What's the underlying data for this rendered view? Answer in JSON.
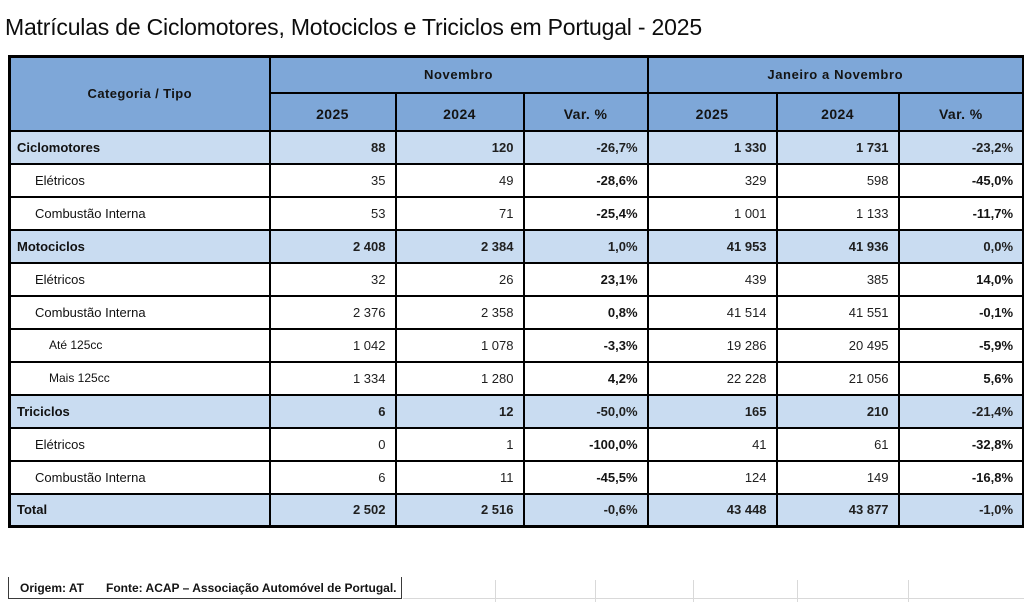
{
  "title": "Matrículas de Ciclomotores, Motociclos e Triciclos em Portugal - 2025",
  "table": {
    "corner_header": "Categoria / Tipo",
    "groups": [
      {
        "label": "Novembro"
      },
      {
        "label": "Janeiro a Novembro"
      }
    ],
    "sub_headers": [
      "2025",
      "2024",
      "Var. %",
      "2025",
      "2024",
      "Var. %"
    ],
    "rows": [
      {
        "label": "Ciclomotores",
        "level": 0,
        "category": true,
        "values": [
          "88",
          "120",
          "-26,7%",
          "1 330",
          "1 731",
          "-23,2%"
        ]
      },
      {
        "label": "Elétricos",
        "level": 1,
        "category": false,
        "values": [
          "35",
          "49",
          "-28,6%",
          "329",
          "598",
          "-45,0%"
        ]
      },
      {
        "label": "Combustão Interna",
        "level": 1,
        "category": false,
        "values": [
          "53",
          "71",
          "-25,4%",
          "1 001",
          "1 133",
          "-11,7%"
        ]
      },
      {
        "label": "Motociclos",
        "level": 0,
        "category": true,
        "values": [
          "2 408",
          "2 384",
          "1,0%",
          "41 953",
          "41 936",
          "0,0%"
        ]
      },
      {
        "label": "Elétricos",
        "level": 1,
        "category": false,
        "values": [
          "32",
          "26",
          "23,1%",
          "439",
          "385",
          "14,0%"
        ]
      },
      {
        "label": "Combustão Interna",
        "level": 1,
        "category": false,
        "values": [
          "2 376",
          "2 358",
          "0,8%",
          "41 514",
          "41 551",
          "-0,1%"
        ]
      },
      {
        "label": "Até 125cc",
        "level": 2,
        "category": false,
        "values": [
          "1 042",
          "1 078",
          "-3,3%",
          "19 286",
          "20 495",
          "-5,9%"
        ]
      },
      {
        "label": "Mais 125cc",
        "level": 2,
        "category": false,
        "values": [
          "1 334",
          "1 280",
          "4,2%",
          "22 228",
          "21 056",
          "5,6%"
        ]
      },
      {
        "label": "Triciclos",
        "level": 0,
        "category": true,
        "values": [
          "6",
          "12",
          "-50,0%",
          "165",
          "210",
          "-21,4%"
        ]
      },
      {
        "label": "Elétricos",
        "level": 1,
        "category": false,
        "values": [
          "0",
          "1",
          "-100,0%",
          "41",
          "61",
          "-32,8%"
        ]
      },
      {
        "label": "Combustão Interna",
        "level": 1,
        "category": false,
        "values": [
          "6",
          "11",
          "-45,5%",
          "124",
          "149",
          "-16,8%"
        ]
      },
      {
        "label": "Total",
        "level": 0,
        "category": true,
        "values": [
          "2 502",
          "2 516",
          "-0,6%",
          "43 448",
          "43 877",
          "-1,0%"
        ]
      }
    ]
  },
  "footer": {
    "origin": "Origem: AT",
    "source": "Fonte: ACAP – Associação Automóvel de Portugal."
  },
  "colors": {
    "header_blue": "#7EA7D8",
    "category_row_blue": "#C9DCF1",
    "border_black": "#000000",
    "faint_gridline": "#D9D9D9"
  },
  "chart_data": {
    "type": "table",
    "title": "Matrículas de Ciclomotores, Motociclos e Triciclos em Portugal - 2025",
    "column_groups": [
      "Novembro",
      "Janeiro a Novembro"
    ],
    "columns": [
      "Categoria / Tipo",
      "Novembro 2025",
      "Novembro 2024",
      "Novembro Var. %",
      "Janeiro a Novembro 2025",
      "Janeiro a Novembro 2024",
      "Janeiro a Novembro Var. %"
    ],
    "rows": [
      {
        "categoria": "Ciclomotores",
        "nov_2025": 88,
        "nov_2024": 120,
        "nov_var_pct": -26.7,
        "ytd_2025": 1330,
        "ytd_2024": 1731,
        "ytd_var_pct": -23.2
      },
      {
        "categoria": "Ciclomotores / Elétricos",
        "nov_2025": 35,
        "nov_2024": 49,
        "nov_var_pct": -28.6,
        "ytd_2025": 329,
        "ytd_2024": 598,
        "ytd_var_pct": -45.0
      },
      {
        "categoria": "Ciclomotores / Combustão Interna",
        "nov_2025": 53,
        "nov_2024": 71,
        "nov_var_pct": -25.4,
        "ytd_2025": 1001,
        "ytd_2024": 1133,
        "ytd_var_pct": -11.7
      },
      {
        "categoria": "Motociclos",
        "nov_2025": 2408,
        "nov_2024": 2384,
        "nov_var_pct": 1.0,
        "ytd_2025": 41953,
        "ytd_2024": 41936,
        "ytd_var_pct": 0.0
      },
      {
        "categoria": "Motociclos / Elétricos",
        "nov_2025": 32,
        "nov_2024": 26,
        "nov_var_pct": 23.1,
        "ytd_2025": 439,
        "ytd_2024": 385,
        "ytd_var_pct": 14.0
      },
      {
        "categoria": "Motociclos / Combustão Interna",
        "nov_2025": 2376,
        "nov_2024": 2358,
        "nov_var_pct": 0.8,
        "ytd_2025": 41514,
        "ytd_2024": 41551,
        "ytd_var_pct": -0.1
      },
      {
        "categoria": "Motociclos / Combustão Interna / Até 125cc",
        "nov_2025": 1042,
        "nov_2024": 1078,
        "nov_var_pct": -3.3,
        "ytd_2025": 19286,
        "ytd_2024": 20495,
        "ytd_var_pct": -5.9
      },
      {
        "categoria": "Motociclos / Combustão Interna / Mais 125cc",
        "nov_2025": 1334,
        "nov_2024": 1280,
        "nov_var_pct": 4.2,
        "ytd_2025": 22228,
        "ytd_2024": 21056,
        "ytd_var_pct": 5.6
      },
      {
        "categoria": "Triciclos",
        "nov_2025": 6,
        "nov_2024": 12,
        "nov_var_pct": -50.0,
        "ytd_2025": 165,
        "ytd_2024": 210,
        "ytd_var_pct": -21.4
      },
      {
        "categoria": "Triciclos / Elétricos",
        "nov_2025": 0,
        "nov_2024": 1,
        "nov_var_pct": -100.0,
        "ytd_2025": 41,
        "ytd_2024": 61,
        "ytd_var_pct": -32.8
      },
      {
        "categoria": "Triciclos / Combustão Interna",
        "nov_2025": 6,
        "nov_2024": 11,
        "nov_var_pct": -45.5,
        "ytd_2025": 124,
        "ytd_2024": 149,
        "ytd_var_pct": -16.8
      },
      {
        "categoria": "Total",
        "nov_2025": 2502,
        "nov_2024": 2516,
        "nov_var_pct": -0.6,
        "ytd_2025": 43448,
        "ytd_2024": 43877,
        "ytd_var_pct": -1.0
      }
    ],
    "notes": [
      "Origem: AT",
      "Fonte: ACAP – Associação Automóvel de Portugal."
    ]
  }
}
